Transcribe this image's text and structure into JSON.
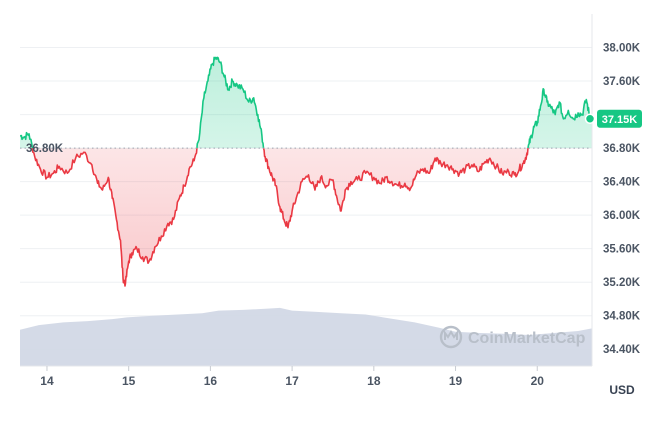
{
  "chart_data": {
    "type": "area",
    "title": "",
    "xlabel": "",
    "ylabel": "",
    "unit": "USD",
    "ylim": [
      34.2,
      38.4
    ],
    "y_ticks": [
      38.0,
      37.6,
      37.2,
      36.8,
      36.4,
      36.0,
      35.6,
      35.2,
      34.8,
      34.4
    ],
    "y_tick_labels": [
      "38.00K",
      "37.60K",
      "37.20K",
      "36.80K",
      "36.40K",
      "36.00K",
      "35.60K",
      "35.20K",
      "34.80K",
      "34.40K"
    ],
    "x_ticks": [
      14,
      15,
      16,
      17,
      18,
      19,
      20
    ],
    "x_tick_labels": [
      "14",
      "15",
      "16",
      "17",
      "18",
      "19",
      "20"
    ],
    "xlim": [
      13.67,
      20.67
    ],
    "reference": {
      "value": 36.8,
      "label": "36.80K"
    },
    "current": {
      "value": 37.15,
      "label": "37.15K"
    },
    "colors": {
      "up": "#16c784",
      "down": "#ea3943",
      "volume": "#cfd6e4",
      "grid": "#eef0f3",
      "reference": "#9aa3ae"
    },
    "watermark": "CoinMarketCap",
    "grid": true,
    "series": [
      {
        "values_unit": "thousand USD",
        "x": [
          13.67,
          13.72,
          13.78,
          13.85,
          13.92,
          14.0,
          14.08,
          14.15,
          14.25,
          14.35,
          14.45,
          14.55,
          14.62,
          14.68,
          14.75,
          14.8,
          14.85,
          14.9,
          14.93,
          14.96,
          15.0,
          15.04,
          15.1,
          15.17,
          15.25,
          15.32,
          15.4,
          15.48,
          15.55,
          15.62,
          15.68,
          15.74,
          15.8,
          15.86,
          15.92,
          15.97,
          16.02,
          16.07,
          16.12,
          16.17,
          16.22,
          16.27,
          16.33,
          16.4,
          16.47,
          16.53,
          16.58,
          16.63,
          16.67,
          16.72,
          16.76,
          16.8,
          16.85,
          16.9,
          16.95,
          17.0,
          17.05,
          17.12,
          17.2,
          17.28,
          17.35,
          17.42,
          17.5,
          17.55,
          17.6,
          17.65,
          17.72,
          17.8,
          17.9,
          18.0,
          18.08,
          18.15,
          18.22,
          18.3,
          18.38,
          18.45,
          18.52,
          18.6,
          18.68,
          18.75,
          18.82,
          18.9,
          18.97,
          19.05,
          19.12,
          19.2,
          19.28,
          19.35,
          19.42,
          19.5,
          19.57,
          19.65,
          19.72,
          19.78,
          19.83,
          19.87,
          19.9,
          19.93,
          19.96,
          20.0,
          20.04,
          20.08,
          20.12,
          20.17,
          20.22,
          20.27,
          20.32,
          20.38,
          20.44,
          20.5,
          20.55,
          20.6,
          20.64,
          20.67
        ],
        "values": [
          36.95,
          36.93,
          36.97,
          36.7,
          36.55,
          36.45,
          36.5,
          36.58,
          36.5,
          36.68,
          36.75,
          36.6,
          36.38,
          36.3,
          36.45,
          36.2,
          35.95,
          35.7,
          35.25,
          35.18,
          35.45,
          35.55,
          35.6,
          35.5,
          35.45,
          35.62,
          35.75,
          35.9,
          35.95,
          36.2,
          36.35,
          36.55,
          36.65,
          36.9,
          37.4,
          37.6,
          37.8,
          37.88,
          37.82,
          37.65,
          37.5,
          37.6,
          37.55,
          37.5,
          37.35,
          37.4,
          37.2,
          36.95,
          36.7,
          36.55,
          36.45,
          36.35,
          36.1,
          35.95,
          35.85,
          36.05,
          36.2,
          36.4,
          36.48,
          36.3,
          36.45,
          36.35,
          36.42,
          36.2,
          36.05,
          36.3,
          36.4,
          36.42,
          36.5,
          36.45,
          36.38,
          36.45,
          36.4,
          36.35,
          36.38,
          36.32,
          36.48,
          36.55,
          36.5,
          36.68,
          36.62,
          36.6,
          36.55,
          36.5,
          36.55,
          36.6,
          36.52,
          36.62,
          36.68,
          36.58,
          36.5,
          36.52,
          36.48,
          36.55,
          36.62,
          36.72,
          36.85,
          36.95,
          37.05,
          37.1,
          37.3,
          37.5,
          37.35,
          37.28,
          37.2,
          37.35,
          37.15,
          37.25,
          37.15,
          37.22,
          37.2,
          37.38,
          37.18,
          37.15
        ]
      }
    ],
    "volume": {
      "x": [
        13.67,
        13.9,
        14.2,
        14.5,
        14.8,
        15.0,
        15.3,
        15.6,
        15.9,
        16.1,
        16.4,
        16.7,
        16.85,
        17.0,
        17.3,
        17.6,
        17.9,
        18.2,
        18.5,
        18.8,
        19.0,
        19.3,
        19.6,
        19.9,
        20.2,
        20.5,
        20.67
      ],
      "values": [
        0.55,
        0.62,
        0.66,
        0.68,
        0.71,
        0.74,
        0.76,
        0.78,
        0.8,
        0.84,
        0.85,
        0.87,
        0.88,
        0.84,
        0.82,
        0.8,
        0.78,
        0.72,
        0.66,
        0.58,
        0.52,
        0.5,
        0.49,
        0.47,
        0.5,
        0.53,
        0.57
      ]
    }
  }
}
